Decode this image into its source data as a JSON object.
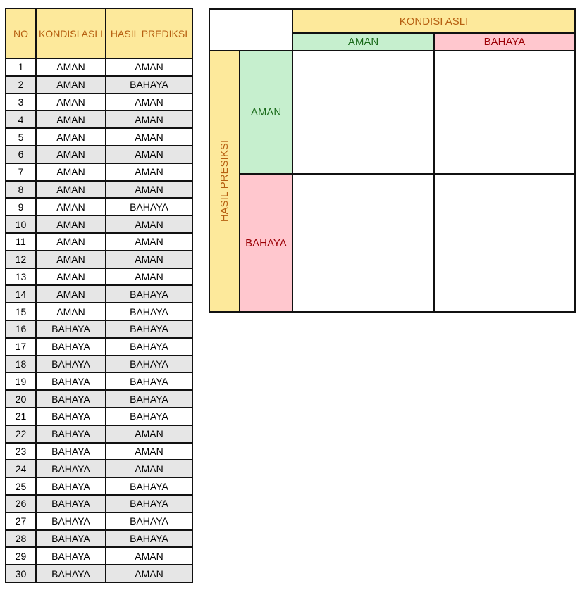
{
  "table": {
    "headers": [
      "NO",
      "KONDISI ASLI",
      "HASIL PREDIKSI"
    ],
    "rows": [
      [
        "1",
        "AMAN",
        "AMAN"
      ],
      [
        "2",
        "AMAN",
        "BAHAYA"
      ],
      [
        "3",
        "AMAN",
        "AMAN"
      ],
      [
        "4",
        "AMAN",
        "AMAN"
      ],
      [
        "5",
        "AMAN",
        "AMAN"
      ],
      [
        "6",
        "AMAN",
        "AMAN"
      ],
      [
        "7",
        "AMAN",
        "AMAN"
      ],
      [
        "8",
        "AMAN",
        "AMAN"
      ],
      [
        "9",
        "AMAN",
        "BAHAYA"
      ],
      [
        "10",
        "AMAN",
        "AMAN"
      ],
      [
        "11",
        "AMAN",
        "AMAN"
      ],
      [
        "12",
        "AMAN",
        "AMAN"
      ],
      [
        "13",
        "AMAN",
        "AMAN"
      ],
      [
        "14",
        "AMAN",
        "BAHAYA"
      ],
      [
        "15",
        "AMAN",
        "BAHAYA"
      ],
      [
        "16",
        "BAHAYA",
        "BAHAYA"
      ],
      [
        "17",
        "BAHAYA",
        "BAHAYA"
      ],
      [
        "18",
        "BAHAYA",
        "BAHAYA"
      ],
      [
        "19",
        "BAHAYA",
        "BAHAYA"
      ],
      [
        "20",
        "BAHAYA",
        "BAHAYA"
      ],
      [
        "21",
        "BAHAYA",
        "BAHAYA"
      ],
      [
        "22",
        "BAHAYA",
        "AMAN"
      ],
      [
        "23",
        "BAHAYA",
        "AMAN"
      ],
      [
        "24",
        "BAHAYA",
        "AMAN"
      ],
      [
        "25",
        "BAHAYA",
        "BAHAYA"
      ],
      [
        "26",
        "BAHAYA",
        "BAHAYA"
      ],
      [
        "27",
        "BAHAYA",
        "BAHAYA"
      ],
      [
        "28",
        "BAHAYA",
        "BAHAYA"
      ],
      [
        "29",
        "BAHAYA",
        "AMAN"
      ],
      [
        "30",
        "BAHAYA",
        "AMAN"
      ]
    ]
  },
  "matrix": {
    "col_header": "KONDISI ASLI",
    "row_header": "HASIL PRESIKSI",
    "col_labels": [
      "AMAN",
      "BAHAYA"
    ],
    "row_labels": [
      "AMAN",
      "BAHAYA"
    ]
  },
  "colors": {
    "header": "#fde99b",
    "aman": "#c6efce",
    "bahaya": "#ffc7ce",
    "alt_row": "#e6e6e6"
  }
}
